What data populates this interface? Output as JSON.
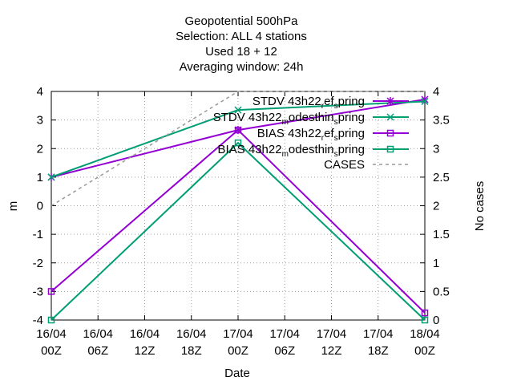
{
  "chart_data": {
    "type": "line",
    "title_lines": [
      "Geopotential 500hPa",
      "Selection: ALL      4 stations",
      "Used  18  + 12",
      "Averaging window: 24h"
    ],
    "xlabel": "Date",
    "ylabel": "m",
    "y2label": "No cases",
    "x_ticks": [
      {
        "d": "16/04",
        "h": "00Z"
      },
      {
        "d": "16/04",
        "h": "06Z"
      },
      {
        "d": "16/04",
        "h": "12Z"
      },
      {
        "d": "16/04",
        "h": "18Z"
      },
      {
        "d": "17/04",
        "h": "00Z"
      },
      {
        "d": "17/04",
        "h": "06Z"
      },
      {
        "d": "17/04",
        "h": "12Z"
      },
      {
        "d": "17/04",
        "h": "18Z"
      },
      {
        "d": "18/04",
        "h": "00Z"
      }
    ],
    "x_hours": [
      0,
      24,
      48
    ],
    "xlim_hours": [
      0,
      48
    ],
    "ylim": [
      -4,
      4
    ],
    "y_ticks": [
      -4,
      -3,
      -2,
      -1,
      0,
      1,
      2,
      3,
      4
    ],
    "y2lim": [
      0,
      4
    ],
    "y2_ticks": [
      "0",
      "0.5",
      "1",
      "1.5",
      "2",
      "2.5",
      "3",
      "3.5",
      "4"
    ],
    "grid": true,
    "legend_position": "top-right",
    "series": [
      {
        "name_parts": [
          [
            "STDV 43h22",
            ""
          ],
          [
            "r",
            "sub"
          ],
          [
            "ef",
            ""
          ],
          [
            "s",
            "sub"
          ],
          [
            "pring",
            ""
          ]
        ],
        "values": [
          1.0,
          2.65,
          3.72
        ],
        "color": "#9400d3",
        "marker": "star",
        "axis": "y"
      },
      {
        "name_parts": [
          [
            "STDV 43h22",
            ""
          ],
          [
            "m",
            "sub"
          ],
          [
            "odesthin",
            ""
          ],
          [
            "s",
            "sub"
          ],
          [
            "pring",
            ""
          ]
        ],
        "values": [
          1.0,
          3.35,
          3.65
        ],
        "color": "#009e73",
        "marker": "x",
        "axis": "y"
      },
      {
        "name_parts": [
          [
            "BIAS 43h22",
            ""
          ],
          [
            "r",
            "sub"
          ],
          [
            "ef",
            ""
          ],
          [
            "s",
            "sub"
          ],
          [
            "pring",
            ""
          ]
        ],
        "values": [
          -3.0,
          2.65,
          -3.75
        ],
        "color": "#9400d3",
        "marker": "square",
        "axis": "y"
      },
      {
        "name_parts": [
          [
            "BIAS 43h22",
            ""
          ],
          [
            "m",
            "sub"
          ],
          [
            "odesthin",
            ""
          ],
          [
            "s",
            "sub"
          ],
          [
            "pring",
            ""
          ]
        ],
        "values": [
          -4.0,
          2.2,
          -4.0
        ],
        "color": "#009e73",
        "marker": "square",
        "axis": "y"
      },
      {
        "name_parts": [
          [
            "CASES",
            ""
          ]
        ],
        "values": [
          2,
          4,
          4
        ],
        "color": "#999999",
        "marker": "none",
        "dash": true,
        "axis": "y2"
      }
    ]
  }
}
